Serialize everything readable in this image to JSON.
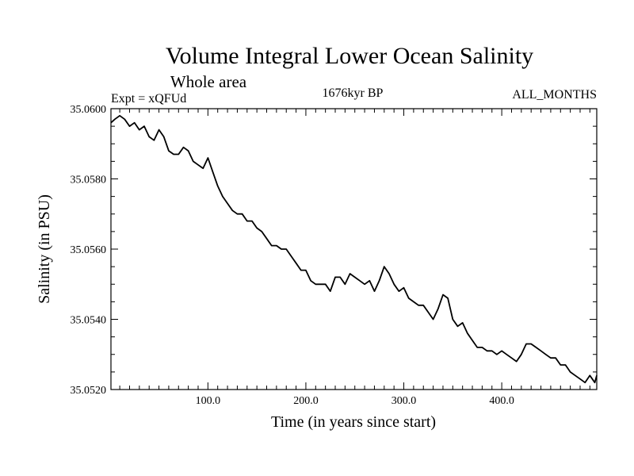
{
  "chart_data": {
    "type": "line",
    "title": "Volume Integral Lower Ocean Salinity",
    "subtitle": "Whole area",
    "experiment_label": "Expt = xQFUd",
    "period_label": "1676kyr BP",
    "months_label": "ALL_MONTHS",
    "xlabel": "Time (in years since start)",
    "ylabel": "Salinity (in PSU)",
    "xlim": [
      1,
      497
    ],
    "ylim": [
      35.052,
      35.06
    ],
    "x_ticks": [
      100,
      200,
      300,
      400
    ],
    "x_tick_labels": [
      "100.0",
      "200.0",
      "300.0",
      "400.0"
    ],
    "y_ticks": [
      35.052,
      35.054,
      35.056,
      35.058,
      35.06
    ],
    "y_tick_labels": [
      "35.0520",
      "35.0540",
      "35.0560",
      "35.0580",
      "35.0600"
    ],
    "grid": false,
    "series": [
      {
        "name": "Volume Integral Lower Ocean Salinity",
        "x": [
          1,
          5,
          10,
          15,
          20,
          25,
          30,
          35,
          40,
          45,
          50,
          55,
          60,
          65,
          70,
          75,
          80,
          85,
          90,
          95,
          100,
          105,
          110,
          115,
          120,
          125,
          130,
          135,
          140,
          145,
          150,
          155,
          160,
          165,
          170,
          175,
          180,
          185,
          190,
          195,
          200,
          205,
          210,
          215,
          220,
          225,
          230,
          235,
          240,
          245,
          250,
          255,
          260,
          265,
          270,
          275,
          280,
          285,
          290,
          295,
          300,
          305,
          310,
          315,
          320,
          325,
          330,
          335,
          340,
          345,
          350,
          355,
          360,
          365,
          370,
          375,
          380,
          385,
          390,
          395,
          400,
          405,
          410,
          415,
          420,
          425,
          430,
          435,
          440,
          445,
          450,
          455,
          460,
          465,
          470,
          475,
          480,
          485,
          490,
          495,
          497
        ],
        "y": [
          35.0596,
          35.0597,
          35.0598,
          35.0597,
          35.0595,
          35.0596,
          35.0594,
          35.0595,
          35.0592,
          35.0591,
          35.0594,
          35.0592,
          35.0588,
          35.0587,
          35.0587,
          35.0589,
          35.0588,
          35.0585,
          35.0584,
          35.0583,
          35.0586,
          35.0582,
          35.0578,
          35.0575,
          35.0573,
          35.0571,
          35.057,
          35.057,
          35.0568,
          35.0568,
          35.0566,
          35.0565,
          35.0563,
          35.0561,
          35.0561,
          35.056,
          35.056,
          35.0558,
          35.0556,
          35.0554,
          35.0554,
          35.0551,
          35.055,
          35.055,
          35.055,
          35.0548,
          35.0552,
          35.0552,
          35.055,
          35.0553,
          35.0552,
          35.0551,
          35.055,
          35.0551,
          35.0548,
          35.0551,
          35.0555,
          35.0553,
          35.055,
          35.0548,
          35.0549,
          35.0546,
          35.0545,
          35.0544,
          35.0544,
          35.0542,
          35.054,
          35.0543,
          35.0547,
          35.0546,
          35.054,
          35.0538,
          35.0539,
          35.0536,
          35.0534,
          35.0532,
          35.0532,
          35.0531,
          35.0531,
          35.053,
          35.0531,
          35.053,
          35.0529,
          35.0528,
          35.053,
          35.0533,
          35.0533,
          35.0532,
          35.0531,
          35.053,
          35.0529,
          35.0529,
          35.0527,
          35.0527,
          35.0525,
          35.0524,
          35.0523,
          35.0522,
          35.0524,
          35.0522,
          35.0524
        ]
      }
    ]
  }
}
